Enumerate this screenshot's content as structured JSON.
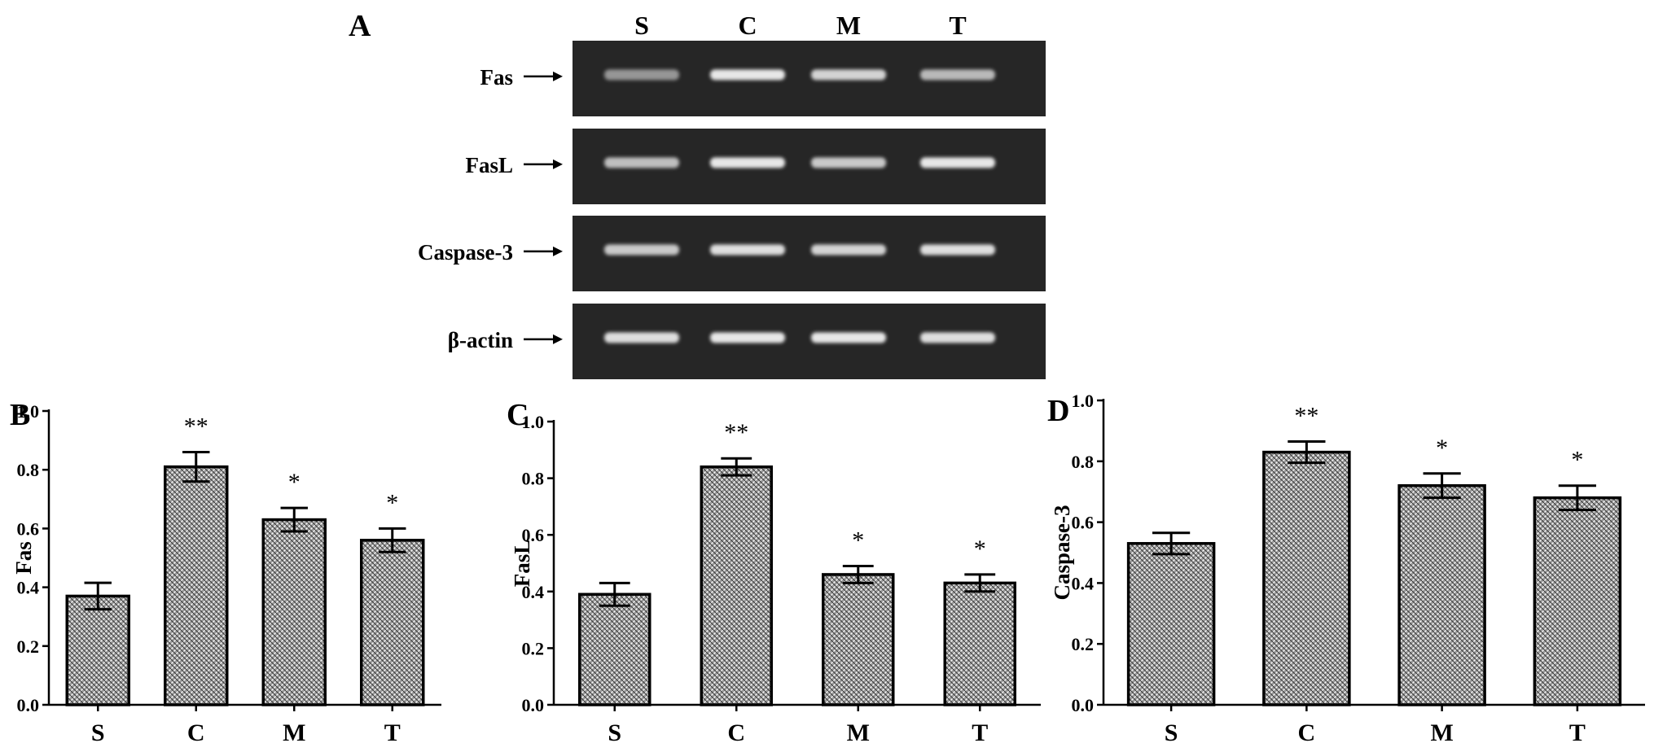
{
  "gel": {
    "panel_letter": "A",
    "lanes": [
      "S",
      "C",
      "M",
      "T"
    ],
    "rows": [
      {
        "gene": "Fas",
        "band_intensity": [
          0.55,
          0.95,
          0.85,
          0.72
        ]
      },
      {
        "gene": "FasL",
        "band_intensity": [
          0.75,
          0.95,
          0.8,
          0.95
        ]
      },
      {
        "gene": "Caspase-3",
        "band_intensity": [
          0.8,
          0.9,
          0.85,
          0.9
        ]
      },
      {
        "gene": "β-actin",
        "band_intensity": [
          0.9,
          0.95,
          0.95,
          0.9
        ]
      }
    ],
    "colors": {
      "background": "#262626",
      "band": "#f2f2f2"
    }
  },
  "chart_data": [
    {
      "panel_letter": "B",
      "type": "bar",
      "categories": [
        "S",
        "C",
        "M",
        "T"
      ],
      "values": [
        0.37,
        0.81,
        0.63,
        0.56
      ],
      "errors": [
        0.045,
        0.05,
        0.04,
        0.04
      ],
      "significance": [
        "",
        "**",
        "*",
        "*"
      ],
      "ylabel": "Fas",
      "ylim": [
        0,
        1.0
      ],
      "yticks": [
        "0.0",
        "0.2",
        "0.4",
        "0.6",
        "0.8",
        "1.0"
      ]
    },
    {
      "panel_letter": "C",
      "type": "bar",
      "categories": [
        "S",
        "C",
        "M",
        "T"
      ],
      "values": [
        0.39,
        0.84,
        0.46,
        0.43
      ],
      "errors": [
        0.04,
        0.03,
        0.03,
        0.03
      ],
      "significance": [
        "",
        "**",
        "*",
        "*"
      ],
      "ylabel": "FasL",
      "ylim": [
        0,
        1.0
      ],
      "yticks": [
        "0.0",
        "0.2",
        "0.4",
        "0.6",
        "0.8",
        "1.0"
      ]
    },
    {
      "panel_letter": "D",
      "type": "bar",
      "categories": [
        "S",
        "C",
        "M",
        "T"
      ],
      "values": [
        0.53,
        0.83,
        0.72,
        0.68
      ],
      "errors": [
        0.035,
        0.035,
        0.04,
        0.04
      ],
      "significance": [
        "",
        "**",
        "*",
        "*"
      ],
      "ylabel": "Caspase-3",
      "ylim": [
        0,
        1.0
      ],
      "yticks": [
        "0.0",
        "0.2",
        "0.4",
        "0.6",
        "0.8",
        "1.0"
      ]
    }
  ]
}
